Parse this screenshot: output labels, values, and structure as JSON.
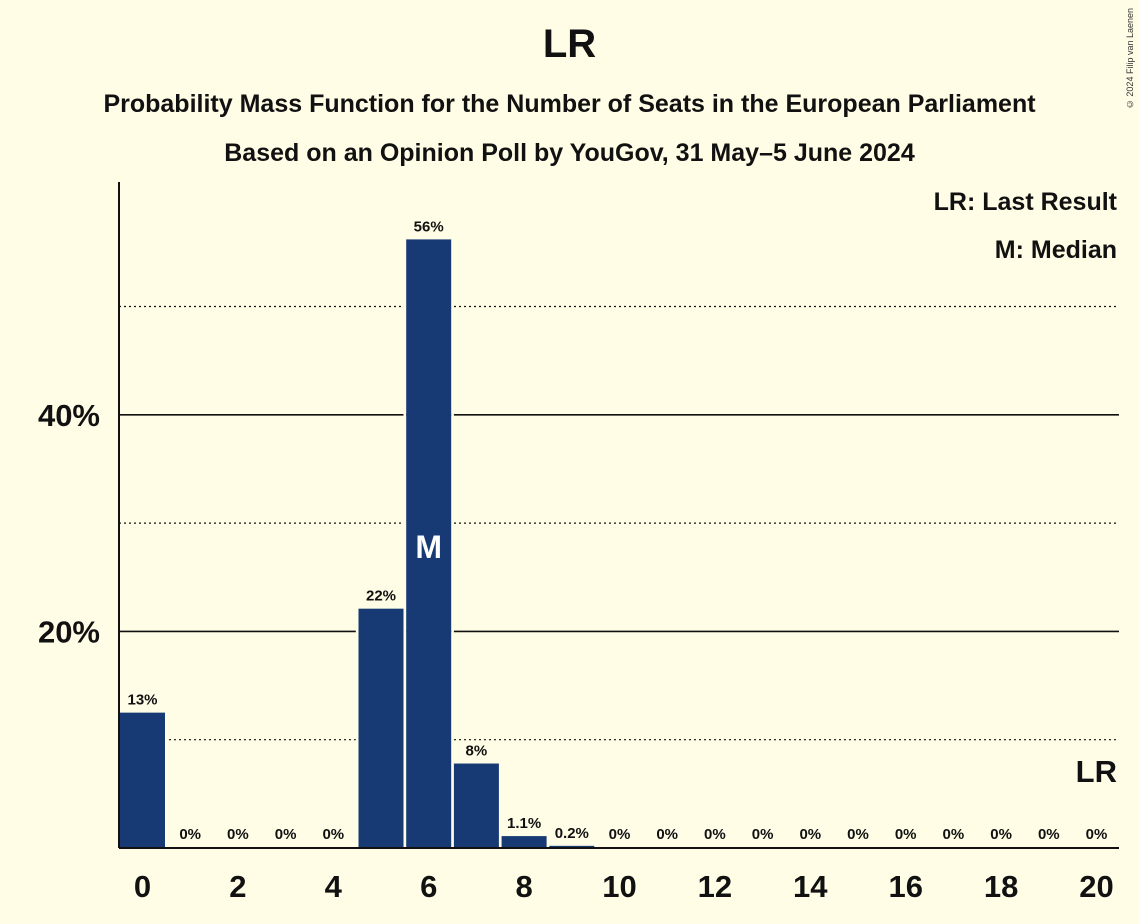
{
  "header": {
    "title": "LR",
    "subtitle_1": "Probability Mass Function for the Number of Seats in the European Parliament",
    "subtitle_2": "Based on an Opinion Poll by YouGov, 31 May–5 June 2024",
    "copyright": "© 2024 Filip van Laenen"
  },
  "legend": {
    "last_result": "LR: Last Result",
    "median": "M: Median"
  },
  "colors": {
    "background": "#FFFDE6",
    "bar": "#173A75",
    "text": "#111111"
  },
  "chart_data": {
    "type": "bar",
    "xlabel": "",
    "ylabel": "",
    "categories": [
      0,
      1,
      2,
      3,
      4,
      5,
      6,
      7,
      8,
      9,
      10,
      11,
      12,
      13,
      14,
      15,
      16,
      17,
      18,
      19,
      20
    ],
    "values": [
      12.5,
      0,
      0,
      0,
      0,
      22.1,
      56.2,
      7.8,
      1.1,
      0.2,
      0,
      0,
      0,
      0,
      0,
      0,
      0,
      0,
      0,
      0,
      0
    ],
    "value_labels": [
      "13%",
      "0%",
      "0%",
      "0%",
      "0%",
      "22%",
      "56%",
      "8%",
      "1.1%",
      "0.2%",
      "0%",
      "0%",
      "0%",
      "0%",
      "0%",
      "0%",
      "0%",
      "0%",
      "0%",
      "0%",
      "0%"
    ],
    "x_tick_labels": [
      "0",
      "2",
      "4",
      "6",
      "8",
      "10",
      "12",
      "14",
      "16",
      "18",
      "20"
    ],
    "y_tick_labels": [
      "20%",
      "40%"
    ],
    "y_major_ticks": [
      20,
      40
    ],
    "y_minor_gridlines": [
      10,
      30,
      50
    ],
    "ylim": [
      0,
      61.5
    ],
    "median_seat": 6,
    "median_marker": "M",
    "last_result_seat": 20,
    "last_result_marker": "LR"
  }
}
